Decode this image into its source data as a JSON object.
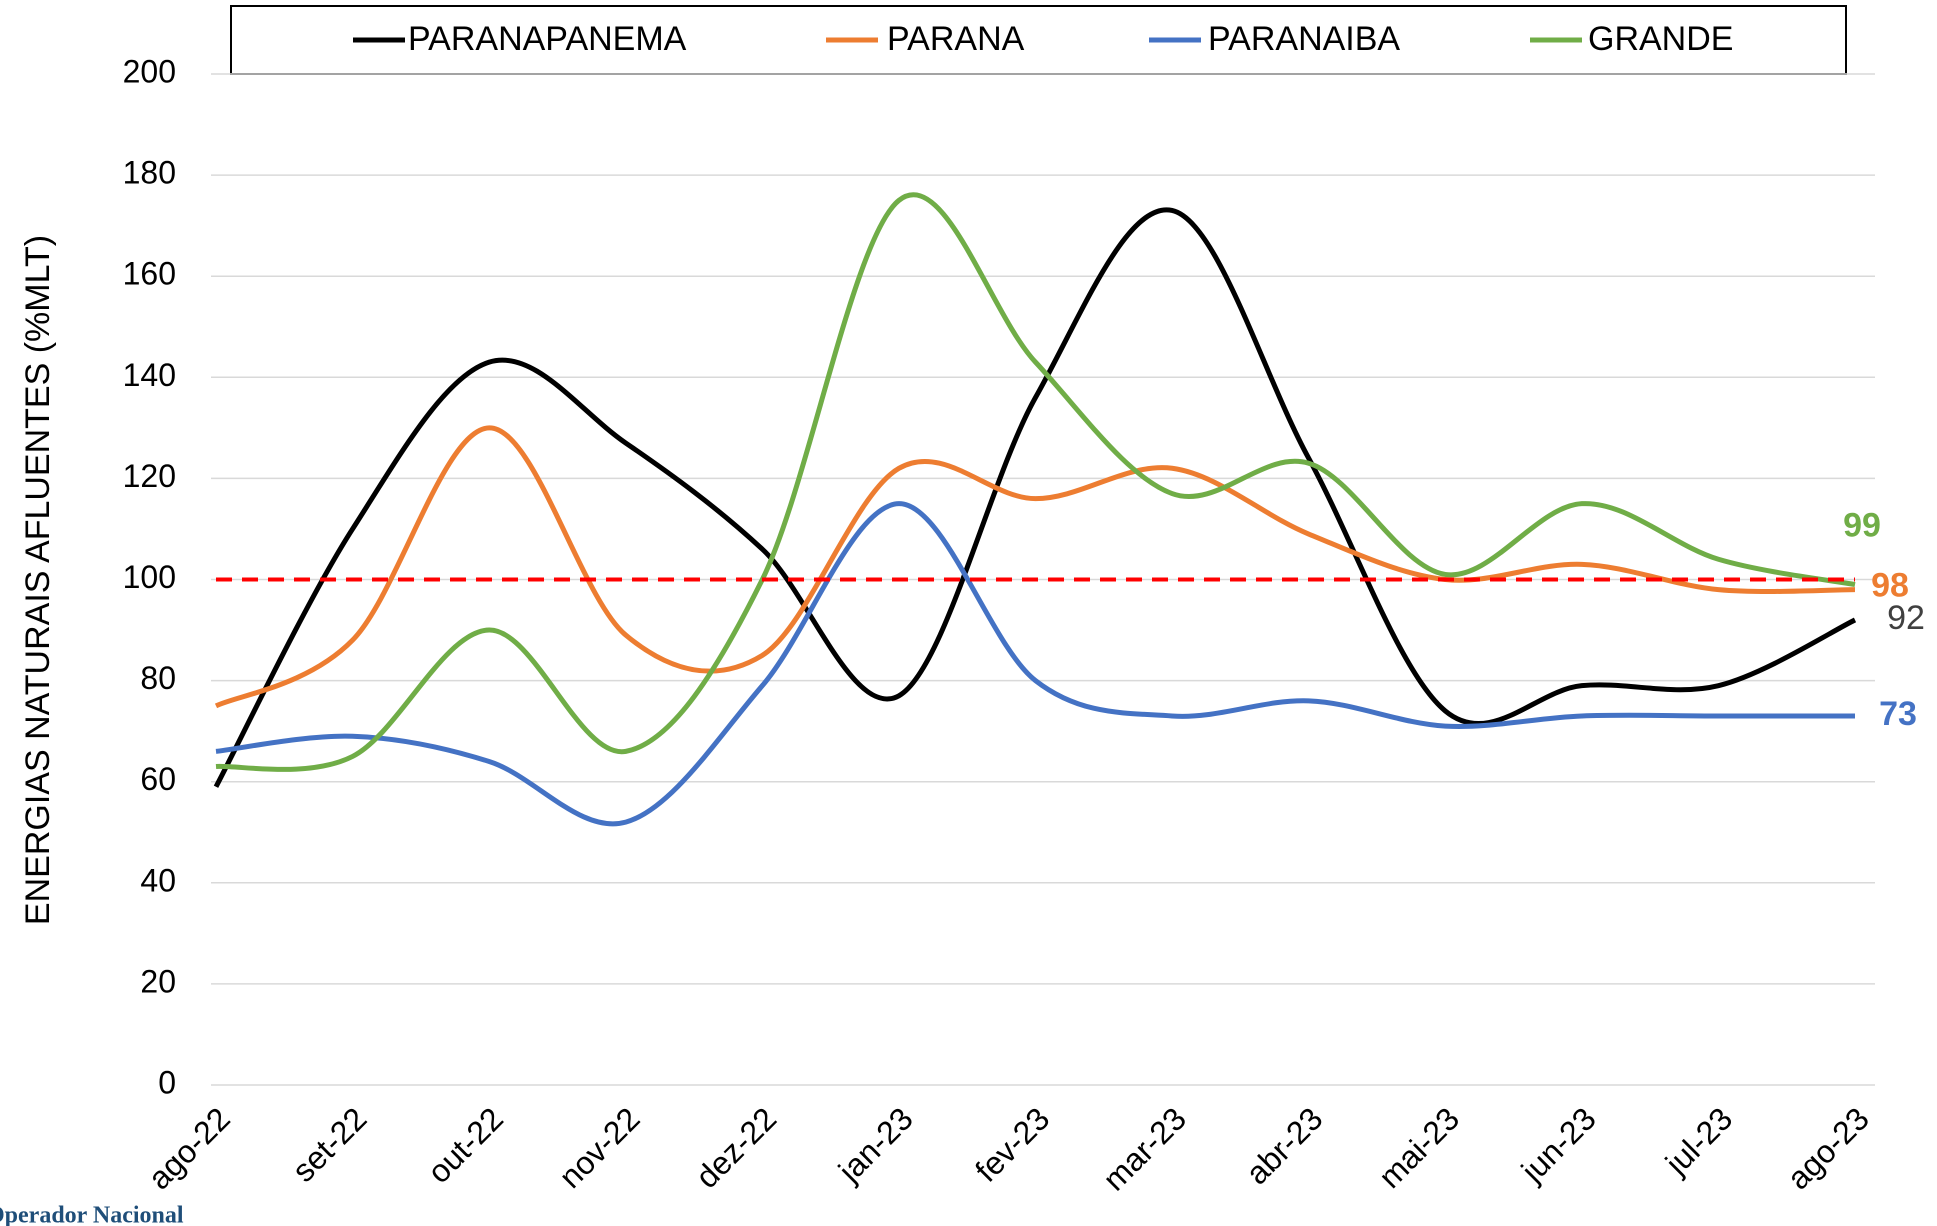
{
  "chart_data": {
    "type": "line",
    "y_axis_label": "ENERGIAS NATURAIS AFLUENTES (%MLT)",
    "categories": [
      "ago-22",
      "set-22",
      "out-22",
      "nov-22",
      "dez-22",
      "jan-23",
      "fev-23",
      "mar-23",
      "abr-23",
      "mai-23",
      "jun-23",
      "jul-23",
      "ago-23"
    ],
    "series": [
      {
        "name": "PARANAPANEMA",
        "color": "#000000",
        "values": [
          59,
          110,
          143,
          127,
          106,
          77,
          136,
          173,
          124,
          74,
          79,
          79,
          92
        ]
      },
      {
        "name": "PARANA",
        "color": "#ed7d31",
        "values": [
          75,
          88,
          130,
          89,
          85,
          122,
          116,
          122,
          109,
          100,
          103,
          98,
          98
        ]
      },
      {
        "name": "PARANAIBA",
        "color": "#4472c4",
        "values": [
          66,
          69,
          64,
          52,
          79,
          115,
          80,
          73,
          76,
          71,
          73,
          73,
          73
        ]
      },
      {
        "name": "GRANDE",
        "color": "#70ad47",
        "values": [
          63,
          65,
          90,
          66,
          100,
          175,
          143,
          117,
          123,
          101,
          115,
          104,
          99
        ]
      }
    ],
    "ylim": [
      0,
      200
    ],
    "yticks": [
      0,
      20,
      40,
      60,
      80,
      100,
      120,
      140,
      160,
      180,
      200
    ],
    "grid": true,
    "smooth": true,
    "legend": "top",
    "reference_line": {
      "value": 100,
      "color": "#ff0000"
    },
    "logo_text": "Operador Nacional"
  }
}
